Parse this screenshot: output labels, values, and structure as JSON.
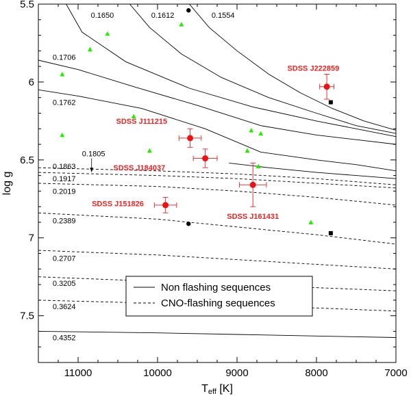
{
  "chart_data": {
    "type": "scatter",
    "title": "",
    "xlabel": "T",
    "xlabel_sub": "eff",
    "xlabel_unit": " [K]",
    "ylabel": "log g",
    "xlim": [
      11500,
      7000
    ],
    "ylim": [
      7.8,
      5.5
    ],
    "x_ticks": [
      11000,
      10000,
      9000,
      8000,
      7000
    ],
    "x_tick_labels": [
      "11000",
      "10000",
      "9000",
      "8000",
      "7000"
    ],
    "y_ticks": [
      5.5,
      6.0,
      6.5,
      7.0,
      7.5
    ],
    "y_tick_labels": [
      "5.5",
      "6",
      "6.5",
      "7",
      "7.5"
    ],
    "legend": {
      "position": "lower-center",
      "entries": [
        {
          "label": "Non flashing sequences",
          "style": "solid"
        },
        {
          "label": "CNO-flashing sequences",
          "style": "dashed"
        }
      ]
    },
    "tracks": [
      {
        "mass": "0.1554",
        "style": "solid",
        "points": [
          [
            9600,
            5.5
          ],
          [
            9350,
            5.65
          ],
          [
            9000,
            5.8
          ],
          [
            8600,
            5.95
          ],
          [
            8200,
            6.07
          ],
          [
            7800,
            6.17
          ],
          [
            7400,
            6.25
          ],
          [
            7000,
            6.31
          ]
        ]
      },
      {
        "mass": "0.1612",
        "style": "solid",
        "points": [
          [
            10350,
            5.5
          ],
          [
            10100,
            5.65
          ],
          [
            9700,
            5.82
          ],
          [
            9200,
            5.97
          ],
          [
            8600,
            6.1
          ],
          [
            8000,
            6.2
          ],
          [
            7500,
            6.28
          ],
          [
            7000,
            6.33
          ]
        ]
      },
      {
        "mass": "0.1650",
        "style": "solid",
        "points": [
          [
            11150,
            5.5
          ],
          [
            10950,
            5.68
          ],
          [
            10400,
            5.87
          ],
          [
            9600,
            6.04
          ],
          [
            8800,
            6.16
          ],
          [
            8000,
            6.25
          ],
          [
            7500,
            6.3
          ],
          [
            7000,
            6.35
          ]
        ]
      },
      {
        "mass": "0.1706",
        "style": "solid",
        "points": [
          [
            11500,
            5.86
          ],
          [
            11000,
            5.92
          ],
          [
            10300,
            6.03
          ],
          [
            9500,
            6.15
          ],
          [
            8700,
            6.28
          ],
          [
            8000,
            6.34
          ],
          [
            7500,
            6.37
          ],
          [
            7000,
            6.4
          ]
        ]
      },
      {
        "mass": "0.1762",
        "style": "solid",
        "points": [
          [
            11500,
            6.05
          ],
          [
            11000,
            6.09
          ],
          [
            10200,
            6.17
          ],
          [
            9400,
            6.3
          ],
          [
            8700,
            6.45
          ],
          [
            8000,
            6.5
          ],
          [
            7500,
            6.53
          ],
          [
            7000,
            6.57
          ]
        ]
      },
      {
        "mass": "0.1805",
        "style": "solid",
        "points": [
          [
            9100,
            6.52
          ],
          [
            8600,
            6.55
          ],
          [
            8000,
            6.58
          ],
          [
            7500,
            6.6
          ],
          [
            7000,
            6.62
          ]
        ]
      },
      {
        "mass": "0.1863",
        "style": "dashed",
        "points": [
          [
            11500,
            6.55
          ],
          [
            10000,
            6.57
          ],
          [
            9000,
            6.59
          ],
          [
            8000,
            6.62
          ],
          [
            7000,
            6.66
          ]
        ]
      },
      {
        "mass": "0.1917",
        "style": "dashed",
        "points": [
          [
            11500,
            6.58
          ],
          [
            10000,
            6.6
          ],
          [
            9000,
            6.62
          ],
          [
            8000,
            6.65
          ],
          [
            7000,
            6.68
          ]
        ]
      },
      {
        "mass": "0.2019",
        "style": "dashed",
        "points": [
          [
            11500,
            6.65
          ],
          [
            10000,
            6.67
          ],
          [
            9000,
            6.7
          ],
          [
            8000,
            6.74
          ],
          [
            7000,
            6.79
          ]
        ]
      },
      {
        "mass": "0.2389",
        "style": "dashed",
        "points": [
          [
            11500,
            6.84
          ],
          [
            10000,
            6.88
          ],
          [
            9000,
            6.93
          ],
          [
            8000,
            6.98
          ],
          [
            7000,
            7.04
          ]
        ]
      },
      {
        "mass": "0.2707",
        "style": "dashed",
        "points": [
          [
            11500,
            7.08
          ],
          [
            10000,
            7.11
          ],
          [
            9000,
            7.14
          ],
          [
            8000,
            7.17
          ],
          [
            7000,
            7.2
          ]
        ]
      },
      {
        "mass": "0.3205",
        "style": "dashed",
        "points": [
          [
            11500,
            7.25
          ],
          [
            10000,
            7.28
          ],
          [
            9000,
            7.3
          ],
          [
            8000,
            7.32
          ],
          [
            7000,
            7.34
          ]
        ]
      },
      {
        "mass": "0.3624",
        "style": "dashed",
        "points": [
          [
            11500,
            7.4
          ],
          [
            10000,
            7.42
          ],
          [
            9000,
            7.44
          ],
          [
            8000,
            7.45
          ],
          [
            7000,
            7.47
          ]
        ]
      },
      {
        "mass": "0.4352",
        "style": "solid",
        "points": [
          [
            11500,
            7.6
          ],
          [
            10000,
            7.61
          ],
          [
            9000,
            7.62
          ],
          [
            8000,
            7.63
          ],
          [
            7000,
            7.64
          ]
        ]
      }
    ],
    "track_labels": [
      {
        "text": "0.1650",
        "x": 10840,
        "y": 5.57
      },
      {
        "text": "0.1612",
        "x": 10080,
        "y": 5.57
      },
      {
        "text": "0.1554",
        "x": 9320,
        "y": 5.57
      },
      {
        "text": "0.1706",
        "x": 11320,
        "y": 5.84
      },
      {
        "text": "0.1762",
        "x": 11320,
        "y": 6.13
      },
      {
        "text": "0.1805",
        "x": 10950,
        "y": 6.46
      },
      {
        "text": "0.1863",
        "x": 11320,
        "y": 6.54
      },
      {
        "text": "0.1917",
        "x": 11320,
        "y": 6.62
      },
      {
        "text": "0.2019",
        "x": 11320,
        "y": 6.7
      },
      {
        "text": "0.2389",
        "x": 11320,
        "y": 6.89
      },
      {
        "text": "0.2707",
        "x": 11320,
        "y": 7.13
      },
      {
        "text": "0.3205",
        "x": 11320,
        "y": 7.29
      },
      {
        "text": "0.3624",
        "x": 11320,
        "y": 7.44
      },
      {
        "text": "0.4352",
        "x": 11320,
        "y": 7.64
      }
    ],
    "comparison_stars": [
      [
        11200,
        5.95
      ],
      [
        11200,
        6.34
      ],
      [
        10850,
        5.79
      ],
      [
        10630,
        5.69
      ],
      [
        10300,
        6.22
      ],
      [
        10100,
        6.44
      ],
      [
        9700,
        5.63
      ],
      [
        8820,
        6.31
      ],
      [
        8700,
        6.33
      ],
      [
        8870,
        6.44
      ],
      [
        8730,
        6.54
      ],
      [
        8070,
        6.9
      ]
    ],
    "sdss_stars": [
      {
        "name": "SDSS J222859",
        "teff": 7870,
        "logg": 6.03,
        "xerr": 90,
        "yerr": 0.08
      },
      {
        "name": "SDSS J111215",
        "teff": 9590,
        "logg": 6.36,
        "xerr": 140,
        "yerr": 0.06
      },
      {
        "name": "SDSS J184037",
        "teff": 9400,
        "logg": 6.49,
        "xerr": 150,
        "yerr": 0.06
      },
      {
        "name": "SDSS J161431",
        "teff": 8800,
        "logg": 6.66,
        "xerr": 170,
        "yerr": 0.14
      },
      {
        "name": "SDSS J151826",
        "teff": 9900,
        "logg": 6.79,
        "xerr": 140,
        "yerr": 0.05
      }
    ],
    "sdss_label_positions": [
      {
        "x": 8040,
        "y": 5.91,
        "anchor": "middle"
      },
      {
        "x": 10200,
        "y": 6.25,
        "anchor": "middle"
      },
      {
        "x": 10230,
        "y": 6.55,
        "anchor": "middle"
      },
      {
        "x": 8800,
        "y": 6.86,
        "anchor": "middle"
      },
      {
        "x": 10500,
        "y": 6.78,
        "anchor": "middle"
      }
    ],
    "black_dots": [
      [
        9610,
        5.54
      ],
      [
        9610,
        6.91
      ]
    ],
    "black_squares": [
      [
        7820,
        6.13
      ],
      [
        7820,
        6.97
      ]
    ]
  }
}
